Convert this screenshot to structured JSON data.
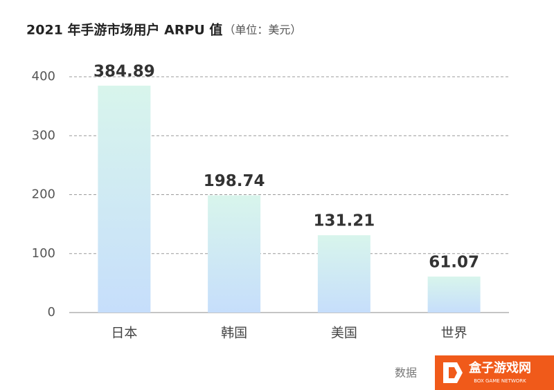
{
  "chart_data": {
    "type": "bar",
    "title": "2021 年手游市场用户 ARPU 值",
    "subtitle": "（单位：美元）",
    "categories": [
      "日本",
      "韩国",
      "美国",
      "世界"
    ],
    "values": [
      384.89,
      198.74,
      131.21,
      61.07
    ],
    "color_top": "#d8f5ec",
    "color_bottom": "#c6defb",
    "ylim": [
      0,
      400
    ],
    "yticks": [
      0,
      100,
      200,
      300,
      400
    ],
    "grid": true,
    "source": "数据"
  },
  "watermark": {
    "title": "盒子游戏网",
    "subtitle": "BOX GAME NETWORK"
  }
}
